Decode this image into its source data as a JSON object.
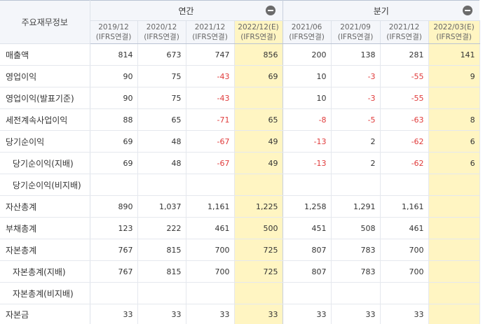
{
  "header": {
    "corner": "주요재무정보",
    "annual": "연간",
    "quarterly": "분기",
    "periods": [
      {
        "date": "2019/12",
        "basis": "(IFRS연결)"
      },
      {
        "date": "2020/12",
        "basis": "(IFRS연결)"
      },
      {
        "date": "2021/12",
        "basis": "(IFRS연결)"
      },
      {
        "date": "2022/12(E)",
        "basis": "(IFRS연결)"
      },
      {
        "date": "2021/06",
        "basis": "(IFRS연결)"
      },
      {
        "date": "2021/09",
        "basis": "(IFRS연결)"
      },
      {
        "date": "2021/12",
        "basis": "(IFRS연결)"
      },
      {
        "date": "2022/03(E)",
        "basis": "(IFRS연결)"
      }
    ]
  },
  "rows": [
    {
      "label": "매출액",
      "values": [
        "814",
        "673",
        "747",
        "856",
        "200",
        "138",
        "281",
        "141"
      ]
    },
    {
      "label": "영업이익",
      "values": [
        "90",
        "75",
        "-43",
        "69",
        "10",
        "-3",
        "-55",
        "9"
      ]
    },
    {
      "label": "영업이익(발표기준)",
      "values": [
        "90",
        "75",
        "-43",
        "",
        "10",
        "-3",
        "-55",
        ""
      ]
    },
    {
      "label": "세전계속사업이익",
      "values": [
        "88",
        "65",
        "-71",
        "65",
        "-8",
        "-5",
        "-63",
        "8"
      ]
    },
    {
      "label": "당기순이익",
      "values": [
        "69",
        "48",
        "-67",
        "49",
        "-13",
        "2",
        "-62",
        "6"
      ]
    },
    {
      "label": "당기순이익(지배)",
      "values": [
        "69",
        "48",
        "-67",
        "49",
        "-13",
        "2",
        "-62",
        "6"
      ]
    },
    {
      "label": "당기순이익(비지배)",
      "values": [
        "",
        "",
        "",
        "",
        "",
        "",
        "",
        ""
      ]
    },
    {
      "label": "자산총계",
      "values": [
        "890",
        "1,037",
        "1,161",
        "1,225",
        "1,258",
        "1,291",
        "1,161",
        ""
      ]
    },
    {
      "label": "부채총계",
      "values": [
        "123",
        "222",
        "461",
        "500",
        "451",
        "508",
        "461",
        ""
      ]
    },
    {
      "label": "자본총계",
      "values": [
        "767",
        "815",
        "700",
        "725",
        "807",
        "783",
        "700",
        ""
      ]
    },
    {
      "label": "자본총계(지배)",
      "values": [
        "767",
        "815",
        "700",
        "725",
        "807",
        "783",
        "700",
        ""
      ]
    },
    {
      "label": "자본총계(비지배)",
      "values": [
        "",
        "",
        "",
        "",
        "",
        "",
        "",
        ""
      ]
    },
    {
      "label": "자본금",
      "values": [
        "33",
        "33",
        "33",
        "33",
        "33",
        "33",
        "33",
        ""
      ]
    }
  ],
  "colors": {
    "estimate_bg": "#fff5c2",
    "negative": "#e03b3b",
    "header_bg": "#f4f6fa"
  }
}
